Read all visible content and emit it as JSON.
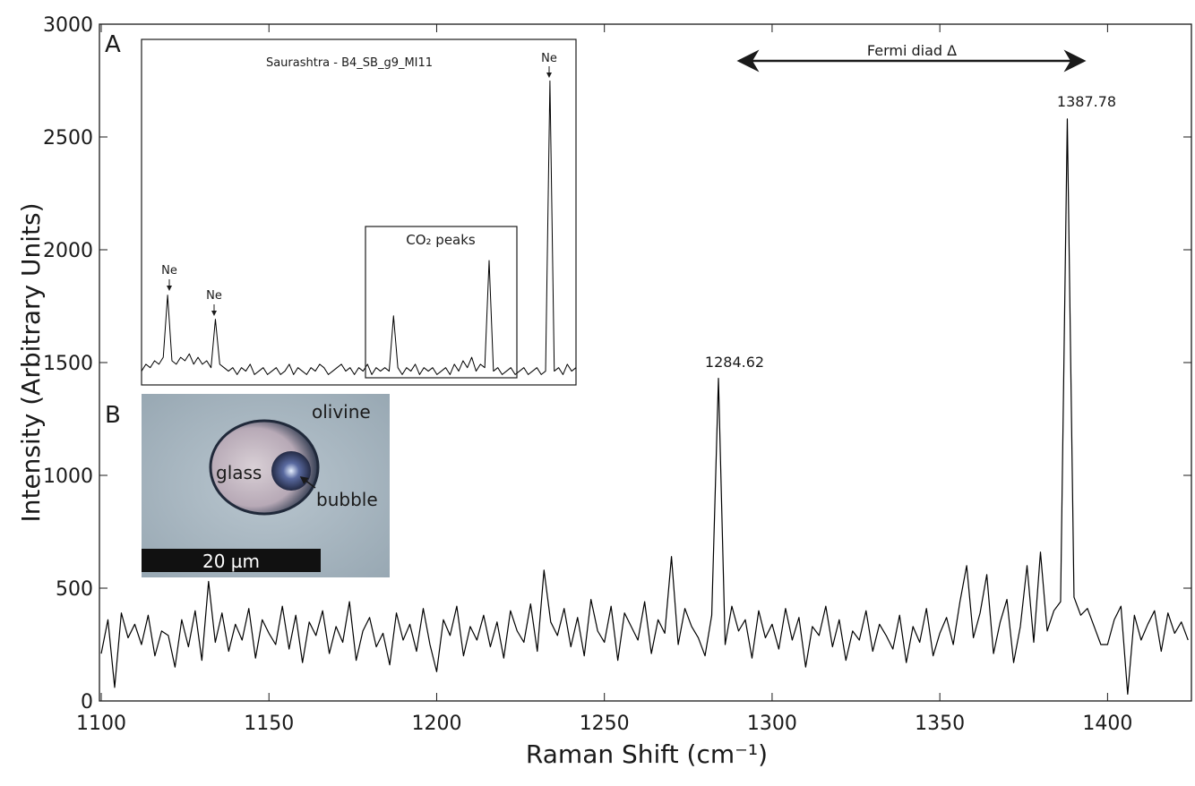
{
  "chart_data": [
    {
      "type": "line",
      "xlabel": "Raman Shift (cm⁻¹)",
      "ylabel": "Intensity (Arbitrary Units)",
      "color": "#000000",
      "xlim": [
        1100,
        1425
      ],
      "ylim": [
        0,
        3000
      ],
      "xticks": [
        1100,
        1150,
        1200,
        1250,
        1300,
        1350,
        1400
      ],
      "yticks": [
        0,
        500,
        1000,
        1500,
        2000,
        2500,
        3000
      ],
      "x": [
        1100,
        1102,
        1104,
        1106,
        1108,
        1110,
        1112,
        1114,
        1116,
        1118,
        1120,
        1122,
        1124,
        1126,
        1128,
        1130,
        1132,
        1134,
        1136,
        1138,
        1140,
        1142,
        1144,
        1146,
        1148,
        1150,
        1152,
        1154,
        1156,
        1158,
        1160,
        1162,
        1164,
        1166,
        1168,
        1170,
        1172,
        1174,
        1176,
        1178,
        1180,
        1182,
        1184,
        1186,
        1188,
        1190,
        1192,
        1194,
        1196,
        1198,
        1200,
        1202,
        1204,
        1206,
        1208,
        1210,
        1212,
        1214,
        1216,
        1218,
        1220,
        1222,
        1224,
        1226,
        1228,
        1230,
        1232,
        1234,
        1236,
        1238,
        1240,
        1242,
        1244,
        1246,
        1248,
        1250,
        1252,
        1254,
        1256,
        1258,
        1260,
        1262,
        1264,
        1266,
        1268,
        1270,
        1272,
        1274,
        1276,
        1278,
        1280,
        1282,
        1284,
        1286,
        1288,
        1290,
        1292,
        1294,
        1296,
        1298,
        1300,
        1302,
        1304,
        1306,
        1308,
        1310,
        1312,
        1314,
        1316,
        1318,
        1320,
        1322,
        1324,
        1326,
        1328,
        1330,
        1332,
        1334,
        1336,
        1338,
        1340,
        1342,
        1344,
        1346,
        1348,
        1350,
        1352,
        1354,
        1356,
        1358,
        1360,
        1362,
        1364,
        1366,
        1368,
        1370,
        1372,
        1374,
        1376,
        1378,
        1380,
        1382,
        1384,
        1386,
        1388,
        1390,
        1392,
        1394,
        1396,
        1398,
        1400,
        1402,
        1404,
        1406,
        1408,
        1410,
        1412,
        1414,
        1416,
        1418,
        1420,
        1422,
        1424
      ],
      "values": [
        210,
        360,
        60,
        390,
        280,
        340,
        250,
        380,
        200,
        310,
        290,
        150,
        360,
        240,
        400,
        180,
        530,
        260,
        390,
        220,
        340,
        270,
        410,
        190,
        360,
        300,
        250,
        420,
        230,
        380,
        170,
        350,
        290,
        400,
        210,
        330,
        260,
        440,
        180,
        310,
        370,
        240,
        300,
        160,
        390,
        270,
        340,
        220,
        410,
        250,
        130,
        360,
        290,
        420,
        200,
        330,
        270,
        380,
        240,
        350,
        190,
        400,
        310,
        260,
        430,
        220,
        580,
        350,
        290,
        410,
        240,
        370,
        200,
        450,
        310,
        260,
        420,
        180,
        390,
        330,
        270,
        440,
        210,
        360,
        300,
        640,
        250,
        410,
        330,
        280,
        200,
        380,
        1430,
        250,
        420,
        310,
        360,
        190,
        400,
        280,
        340,
        230,
        410,
        270,
        370,
        150,
        330,
        290,
        420,
        240,
        360,
        180,
        310,
        270,
        400,
        220,
        340,
        290,
        230,
        380,
        170,
        330,
        260,
        410,
        200,
        300,
        370,
        250,
        440,
        600,
        280,
        390,
        560,
        210,
        350,
        450,
        170,
        330,
        600,
        260,
        660,
        310,
        400,
        440,
        2580,
        460,
        380,
        410,
        330,
        250,
        250,
        360,
        420,
        30,
        380,
        270,
        340,
        400,
        220,
        390,
        300,
        350,
        270
      ],
      "annotations": [
        "1284.62",
        "1387.78",
        "Fermi diad Δ"
      ],
      "panel_labels": [
        "A",
        "B"
      ],
      "photo_labels": [
        "olivine",
        "glass",
        "bubble",
        "20 µm"
      ]
    },
    {
      "type": "line",
      "title": "Saurashtra - B4_SB_g9_MI11",
      "color": "#000000",
      "xlim": [
        0,
        200
      ],
      "ylim": [
        0,
        100
      ],
      "x": [
        0,
        2,
        4,
        6,
        8,
        10,
        12,
        14,
        16,
        18,
        20,
        22,
        24,
        26,
        28,
        30,
        32,
        34,
        36,
        38,
        40,
        42,
        44,
        46,
        48,
        50,
        52,
        54,
        56,
        58,
        60,
        62,
        64,
        66,
        68,
        70,
        72,
        74,
        76,
        78,
        80,
        82,
        84,
        86,
        88,
        90,
        92,
        94,
        96,
        98,
        100,
        102,
        104,
        106,
        108,
        110,
        112,
        114,
        116,
        118,
        120,
        122,
        124,
        126,
        128,
        130,
        132,
        134,
        136,
        138,
        140,
        142,
        144,
        146,
        148,
        150,
        152,
        154,
        156,
        158,
        160,
        162,
        164,
        166,
        168,
        170,
        172,
        174,
        176,
        178,
        180,
        182,
        184,
        186,
        188,
        190,
        192,
        194,
        196,
        198,
        200
      ],
      "values": [
        4,
        6,
        5,
        7,
        6,
        8,
        26,
        7,
        6,
        8,
        7,
        9,
        6,
        8,
        6,
        7,
        5,
        19,
        6,
        5,
        4,
        5,
        3,
        5,
        4,
        6,
        3,
        4,
        5,
        3,
        4,
        5,
        3,
        4,
        6,
        3,
        5,
        4,
        3,
        5,
        4,
        6,
        5,
        3,
        4,
        5,
        6,
        4,
        5,
        3,
        5,
        4,
        6,
        3,
        5,
        4,
        5,
        4,
        20,
        5,
        3,
        5,
        4,
        6,
        3,
        5,
        4,
        5,
        3,
        4,
        5,
        3,
        6,
        4,
        7,
        5,
        8,
        4,
        6,
        5,
        36,
        4,
        5,
        3,
        4,
        5,
        3,
        4,
        5,
        3,
        4,
        5,
        3,
        4,
        88,
        4,
        5,
        3,
        6,
        4,
        5
      ],
      "annotations": [
        "Ne",
        "Ne",
        "CO₂ peaks",
        "Ne"
      ]
    }
  ]
}
